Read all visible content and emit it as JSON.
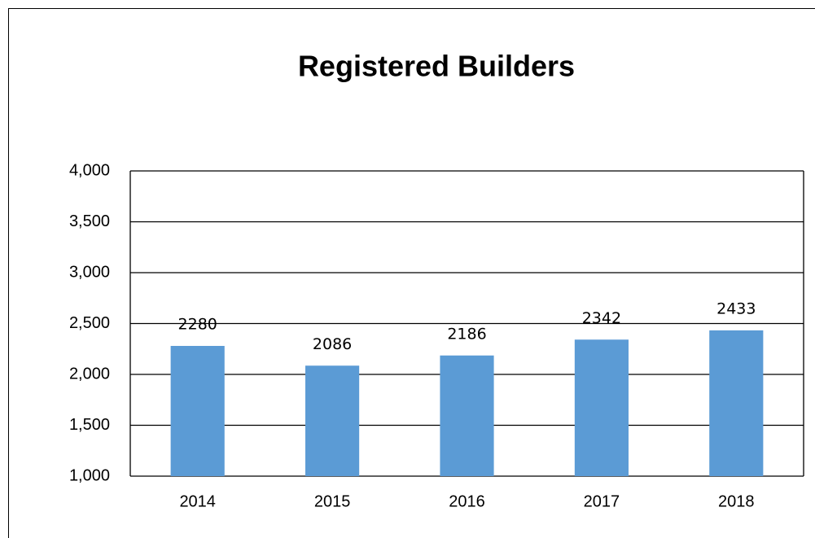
{
  "chart_data": {
    "type": "bar",
    "title": "Registered Builders",
    "categories": [
      "2014",
      "2015",
      "2016",
      "2017",
      "2018"
    ],
    "values": [
      2280,
      2086,
      2186,
      2342,
      2433
    ],
    "color": "#5b9bd5",
    "ylim": [
      1000,
      4000
    ],
    "yticks": [
      {
        "value": 1000,
        "label": "1,000"
      },
      {
        "value": 1500,
        "label": "1,500"
      },
      {
        "value": 2000,
        "label": "2,000"
      },
      {
        "value": 2500,
        "label": "2,500"
      },
      {
        "value": 3000,
        "label": "3,000"
      },
      {
        "value": 3500,
        "label": "3,500"
      },
      {
        "value": 4000,
        "label": "4,000"
      }
    ],
    "grid": true
  }
}
